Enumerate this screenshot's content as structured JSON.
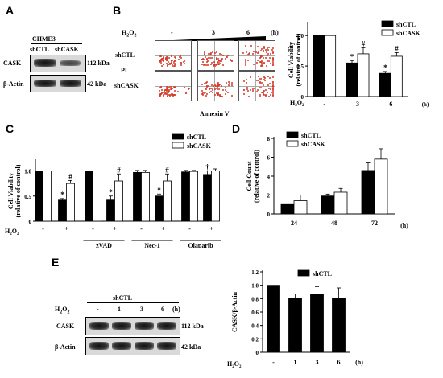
{
  "panels": {
    "A": "A",
    "B": "B",
    "C": "C",
    "D": "D",
    "E": "E"
  },
  "panelA": {
    "cell_line": "CHME3",
    "lanes": [
      "shCTL",
      "shCASK"
    ],
    "rows": [
      "CASK",
      "β-Actin"
    ],
    "sizes": [
      "112 kDa",
      "42 kDa"
    ]
  },
  "panelB_facs": {
    "h2o2": "H",
    "h2o2_sub": "2",
    "h2o2_o": "O",
    "h2o2_sub2": "2",
    "doses": [
      "-",
      "3",
      "6"
    ],
    "unit": "(h)",
    "rows": [
      "shCTL",
      "PI",
      "shCASK"
    ],
    "xlabel": "Annexin V"
  },
  "panelE_blot": {
    "group": "shCTL",
    "h2o2": "H",
    "h2o2_sub": "2",
    "h2o2_o": "O",
    "h2o2_sub2": "2",
    "doses": [
      "-",
      "1",
      "3",
      "6"
    ],
    "unit": "(h)",
    "rows": [
      "CASK",
      "β-Actin"
    ],
    "sizes": [
      "112 kDa",
      "42 kDa"
    ]
  },
  "chart_data": [
    {
      "panel": "B",
      "type": "bar",
      "ylabel": "Cell Viability\n(relative of control)",
      "ylim": [
        0,
        1.2
      ],
      "yticks": [
        0,
        0.5,
        1.0
      ],
      "categories": [
        "-",
        "3",
        "6"
      ],
      "xrow_label": "H2O2",
      "xunit": "(h)",
      "legend_pos": "top-right",
      "series": [
        {
          "name": "shCTL",
          "color": "#000000",
          "values": [
            1.0,
            0.55,
            0.38
          ],
          "errors": [
            0.0,
            0.04,
            0.03
          ]
        },
        {
          "name": "shCASK",
          "color": "#ffffff",
          "values": [
            1.0,
            0.7,
            0.66
          ],
          "errors": [
            0.0,
            0.1,
            0.06
          ]
        }
      ],
      "annotations": [
        {
          "cat": 1,
          "series": 0,
          "text": "*"
        },
        {
          "cat": 1,
          "series": 1,
          "text": "#"
        },
        {
          "cat": 2,
          "series": 0,
          "text": "*"
        },
        {
          "cat": 2,
          "series": 1,
          "text": "#"
        }
      ]
    },
    {
      "panel": "C",
      "type": "bar",
      "ylabel": "Cell Viability\n(relative of control)",
      "ylim": [
        0,
        1.2
      ],
      "yticks": [
        0,
        0.5,
        1.0
      ],
      "categories": [
        "-",
        "+",
        "-",
        "+",
        "-",
        "+",
        "-",
        "+"
      ],
      "xrow_label": "H2O2",
      "groups": [
        "zVAD",
        "Nec-1",
        "Olaparib"
      ],
      "legend_pos": "top-right",
      "series": [
        {
          "name": "shCTL",
          "color": "#000000",
          "values": [
            1.0,
            0.42,
            1.0,
            0.42,
            0.97,
            0.5,
            0.98,
            0.93
          ],
          "errors": [
            0.0,
            0.03,
            0.0,
            0.08,
            0.04,
            0.04,
            0.03,
            0.07
          ]
        },
        {
          "name": "shCASK",
          "color": "#ffffff",
          "values": [
            1.0,
            0.75,
            1.0,
            0.8,
            0.97,
            0.8,
            0.99,
            1.0
          ],
          "errors": [
            0.0,
            0.06,
            0.0,
            0.14,
            0.04,
            0.14,
            0.02,
            0.04
          ]
        }
      ],
      "annotations": [
        {
          "cat": 1,
          "series": 0,
          "text": "*"
        },
        {
          "cat": 1,
          "series": 1,
          "text": "#"
        },
        {
          "cat": 3,
          "series": 0,
          "text": "*"
        },
        {
          "cat": 3,
          "series": 1,
          "text": "#"
        },
        {
          "cat": 5,
          "series": 0,
          "text": "*"
        },
        {
          "cat": 5,
          "series": 1,
          "text": "#"
        },
        {
          "cat": 7,
          "series": 0,
          "text": "†"
        }
      ]
    },
    {
      "panel": "D",
      "type": "bar",
      "ylabel": "Cell Count\n(relative of control)",
      "ylim": [
        0,
        8
      ],
      "yticks": [
        0,
        2,
        4,
        6,
        8
      ],
      "categories": [
        "24",
        "48",
        "72"
      ],
      "xunit": "(h)",
      "legend_pos": "top-left",
      "series": [
        {
          "name": "shCTL",
          "color": "#000000",
          "values": [
            1.0,
            1.9,
            4.6
          ],
          "errors": [
            0.0,
            0.2,
            0.8
          ]
        },
        {
          "name": "shCASK",
          "color": "#ffffff",
          "values": [
            1.4,
            2.3,
            5.8
          ],
          "errors": [
            0.6,
            0.4,
            1.1
          ]
        }
      ]
    },
    {
      "panel": "E",
      "type": "bar",
      "ylabel": "CASK/β-Actin",
      "ylim": [
        0,
        1.2
      ],
      "yticks": [
        0,
        0.2,
        0.4,
        0.6,
        0.8,
        1.0,
        1.2
      ],
      "categories": [
        "-",
        "1",
        "3",
        "6"
      ],
      "xrow_label": "H2O2",
      "xunit": "(h)",
      "legend_pos": "top-right",
      "series": [
        {
          "name": "shCTL",
          "color": "#000000",
          "values": [
            1.0,
            0.8,
            0.86,
            0.8
          ],
          "errors": [
            0.0,
            0.07,
            0.12,
            0.16
          ]
        }
      ]
    }
  ]
}
